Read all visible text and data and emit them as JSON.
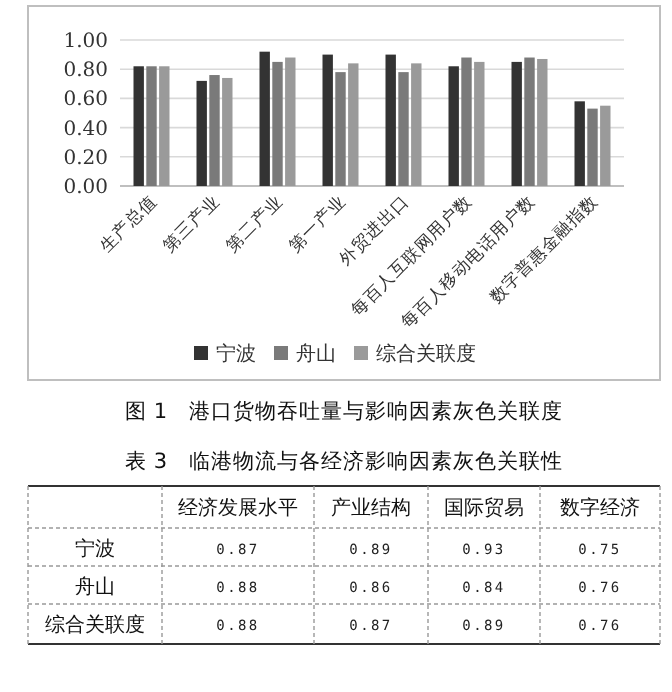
{
  "chart_data": [
    {
      "type": "bar",
      "title": "图 1　港口货物吞吐量与影响因素灰色关联度",
      "categories": [
        "生产总值",
        "第三产业",
        "第二产业",
        "第一产业",
        "外贸进出口",
        "每百人互联网用户数",
        "每百人移动电话用户数",
        "数字普惠金融指数"
      ],
      "series": [
        {
          "name": "宁波",
          "color": "#333333",
          "values": [
            0.82,
            0.72,
            0.92,
            0.9,
            0.9,
            0.82,
            0.85,
            0.58
          ]
        },
        {
          "name": "舟山",
          "color": "#7a7a7a",
          "values": [
            0.82,
            0.76,
            0.85,
            0.78,
            0.78,
            0.88,
            0.88,
            0.53
          ]
        },
        {
          "name": "综合关联度",
          "color": "#9a9a9a",
          "values": [
            0.82,
            0.74,
            0.88,
            0.84,
            0.84,
            0.85,
            0.87,
            0.55
          ]
        }
      ],
      "ylim": [
        0,
        1
      ],
      "yticks": [
        {
          "value": 0,
          "label": "0.00"
        },
        {
          "value": 0.2,
          "label": "0.20"
        },
        {
          "value": 0.4,
          "label": "0.40"
        },
        {
          "value": 0.6,
          "label": "0.60"
        },
        {
          "value": 0.8,
          "label": "0.80"
        },
        {
          "value": 1,
          "label": "1.00"
        }
      ],
      "grid": "y",
      "legend": "bottom"
    },
    {
      "type": "heatmap",
      "title": "表 3　临港物流与各经济影响因素灰色关联性",
      "categories": [
        "经济发展水平",
        "产业结构",
        "国际贸易",
        "数字经济"
      ],
      "y_categories": [
        "宁波",
        "舟山",
        "综合关联度"
      ],
      "cells": [
        [
          0.87,
          0.89,
          0.93,
          0.75
        ],
        [
          0.88,
          0.86,
          0.84,
          0.76
        ],
        [
          0.88,
          0.87,
          0.89,
          0.76
        ]
      ],
      "data_labels": true
    }
  ]
}
